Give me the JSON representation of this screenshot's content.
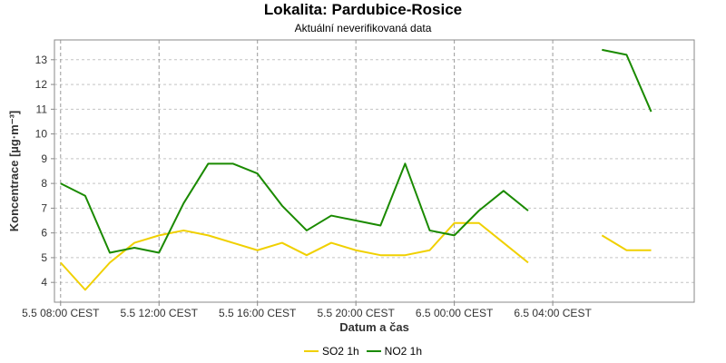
{
  "header": {
    "title": "Lokalita: Pardubice-Rosice",
    "subtitle": "Aktuální neverifikovaná data"
  },
  "chart_data": {
    "type": "line",
    "title": "Lokalita: Pardubice-Rosice",
    "subtitle": "Aktuální neverifikovaná data",
    "xlabel": "Datum a čas",
    "ylabel": "Koncentrace [µg·m⁻³]",
    "ylim": [
      3.2,
      13.8
    ],
    "yticks": [
      4,
      5,
      6,
      7,
      8,
      9,
      10,
      11,
      12,
      13
    ],
    "xlim": [
      "5.5 07:45",
      "6.5 09:45"
    ],
    "x_ticks": [
      {
        "x": "5.5 08:00",
        "label": "5.5 08:00 CEST"
      },
      {
        "x": "5.5 12:00",
        "label": "5.5 12:00 CEST"
      },
      {
        "x": "5.5 16:00",
        "label": "5.5 16:00 CEST"
      },
      {
        "x": "5.5 20:00",
        "label": "5.5 20:00 CEST"
      },
      {
        "x": "6.5 00:00",
        "label": "6.5 00:00 CEST"
      },
      {
        "x": "6.5 04:00",
        "label": "6.5 04:00 CEST"
      }
    ],
    "grid": true,
    "legend_position": "bottom",
    "series": [
      {
        "name": "SO2 1h",
        "color": "#f0d000",
        "points": [
          {
            "x": "5.5 08:00",
            "y": 4.8
          },
          {
            "x": "5.5 09:00",
            "y": 3.7
          },
          {
            "x": "5.5 10:00",
            "y": 4.8
          },
          {
            "x": "5.5 11:00",
            "y": 5.6
          },
          {
            "x": "5.5 12:00",
            "y": 5.9
          },
          {
            "x": "5.5 13:00",
            "y": 6.1
          },
          {
            "x": "5.5 14:00",
            "y": 5.9
          },
          {
            "x": "5.5 15:00",
            "y": 5.6
          },
          {
            "x": "5.5 16:00",
            "y": 5.3
          },
          {
            "x": "5.5 17:00",
            "y": 5.6
          },
          {
            "x": "5.5 18:00",
            "y": 5.1
          },
          {
            "x": "5.5 19:00",
            "y": 5.6
          },
          {
            "x": "5.5 20:00",
            "y": 5.3
          },
          {
            "x": "5.5 21:00",
            "y": 5.1
          },
          {
            "x": "5.5 22:00",
            "y": 5.1
          },
          {
            "x": "5.5 23:00",
            "y": 5.3
          },
          {
            "x": "6.5 00:00",
            "y": 6.4
          },
          {
            "x": "6.5 01:00",
            "y": 6.4
          },
          {
            "x": "6.5 02:00",
            "y": 5.6
          },
          {
            "x": "6.5 03:00",
            "y": 4.8
          },
          {
            "x": "6.5 04:00",
            "y": null
          },
          {
            "x": "6.5 05:00",
            "y": null
          },
          {
            "x": "6.5 06:00",
            "y": 5.9
          },
          {
            "x": "6.5 07:00",
            "y": 5.3
          },
          {
            "x": "6.5 08:00",
            "y": 5.3
          }
        ]
      },
      {
        "name": "NO2 1h",
        "color": "#1a8a00",
        "points": [
          {
            "x": "5.5 08:00",
            "y": 8.0
          },
          {
            "x": "5.5 09:00",
            "y": 7.5
          },
          {
            "x": "5.5 10:00",
            "y": 5.2
          },
          {
            "x": "5.5 11:00",
            "y": 5.4
          },
          {
            "x": "5.5 12:00",
            "y": 5.2
          },
          {
            "x": "5.5 13:00",
            "y": 7.2
          },
          {
            "x": "5.5 14:00",
            "y": 8.8
          },
          {
            "x": "5.5 15:00",
            "y": 8.8
          },
          {
            "x": "5.5 16:00",
            "y": 8.4
          },
          {
            "x": "5.5 17:00",
            "y": 7.1
          },
          {
            "x": "5.5 18:00",
            "y": 6.1
          },
          {
            "x": "5.5 19:00",
            "y": 6.7
          },
          {
            "x": "5.5 20:00",
            "y": 6.5
          },
          {
            "x": "5.5 21:00",
            "y": 6.3
          },
          {
            "x": "5.5 22:00",
            "y": 8.8
          },
          {
            "x": "5.5 23:00",
            "y": 6.1
          },
          {
            "x": "6.5 00:00",
            "y": 5.9
          },
          {
            "x": "6.5 01:00",
            "y": 6.9
          },
          {
            "x": "6.5 02:00",
            "y": 7.7
          },
          {
            "x": "6.5 03:00",
            "y": 6.9
          },
          {
            "x": "6.5 04:00",
            "y": null
          },
          {
            "x": "6.5 05:00",
            "y": null
          },
          {
            "x": "6.5 06:00",
            "y": 13.4
          },
          {
            "x": "6.5 07:00",
            "y": 13.2
          },
          {
            "x": "6.5 08:00",
            "y": 10.9
          }
        ]
      }
    ]
  }
}
